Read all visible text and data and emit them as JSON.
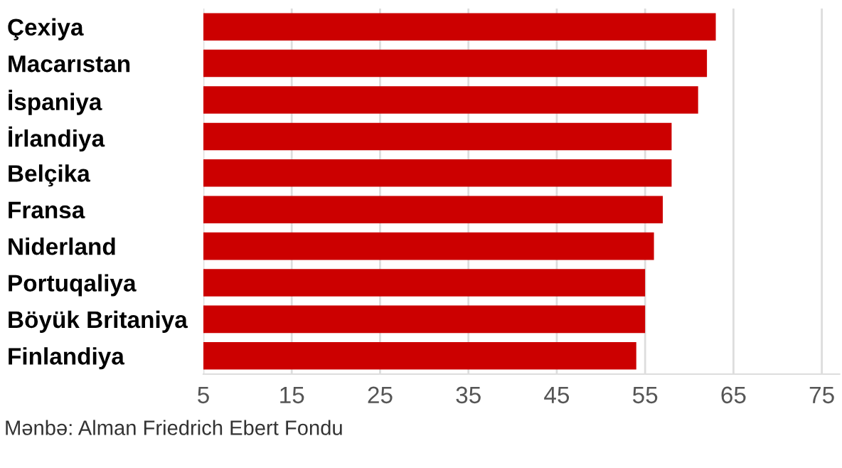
{
  "chart_data": {
    "type": "bar",
    "orientation": "horizontal",
    "categories": [
      "Çexiya",
      "Macarıstan",
      "İspaniya",
      "İrlandiya",
      "Belçika",
      "Fransa",
      "Niderland",
      "Portuqaliya",
      "Böyük Britaniya",
      "Finlandiya"
    ],
    "values": [
      63,
      62,
      61,
      58,
      58,
      57,
      56,
      55,
      55,
      54
    ],
    "color": "#cc0000",
    "xlim": [
      5,
      77
    ],
    "xticks": [
      5,
      15,
      25,
      35,
      45,
      55,
      65,
      75
    ],
    "grid": "x",
    "annotations": [
      "Mənbə: Alman Friedrich Ebert Fondu"
    ]
  }
}
